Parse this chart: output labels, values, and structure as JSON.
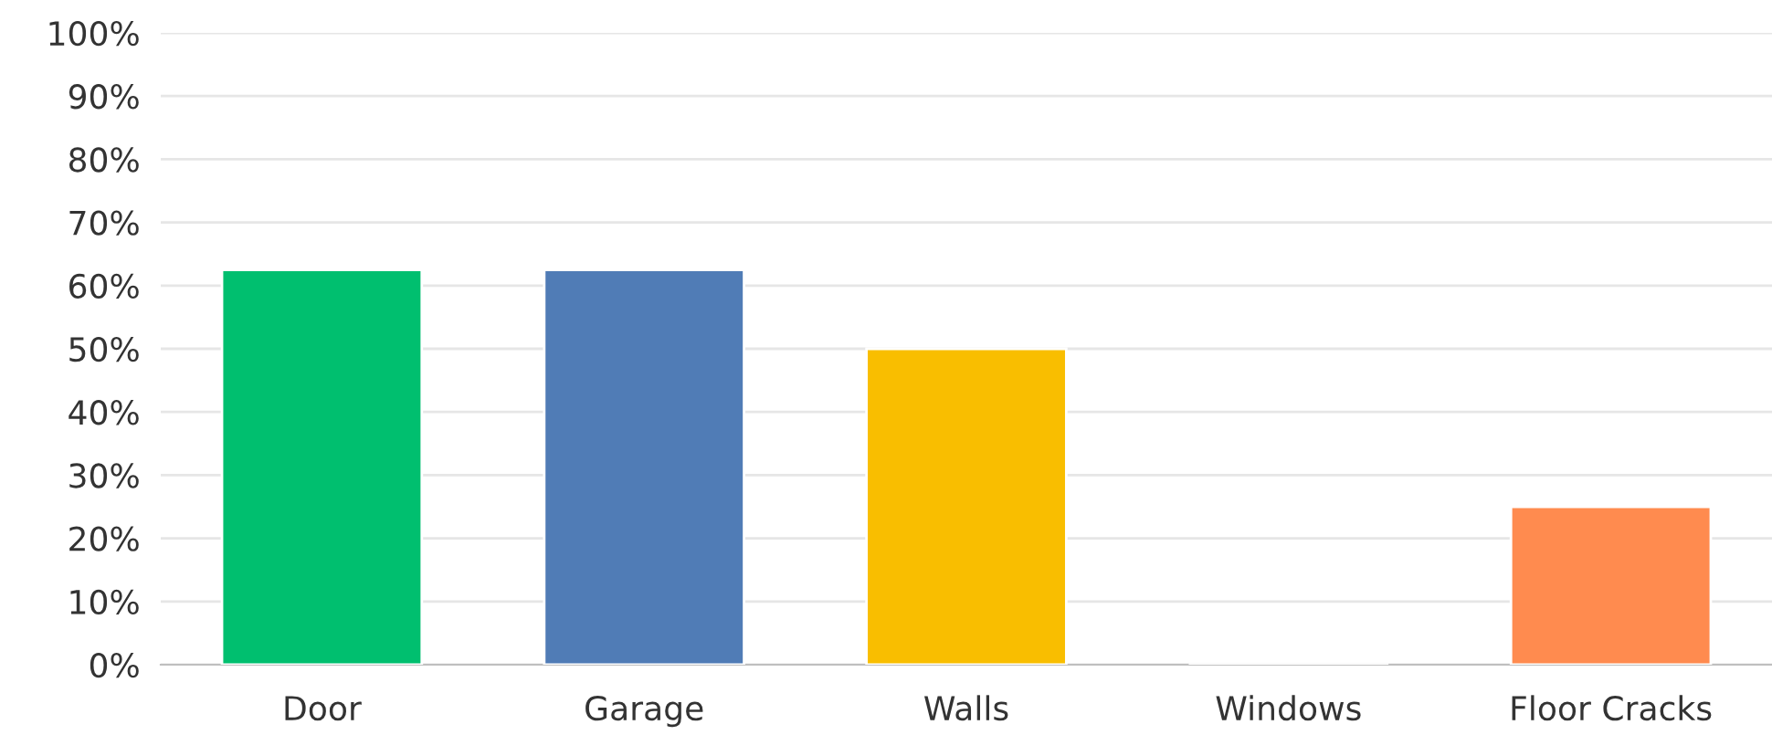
{
  "chart_data": {
    "type": "bar",
    "categories": [
      "Door",
      "Garage",
      "Walls",
      "Windows",
      "Floor Cracks"
    ],
    "values": [
      62.5,
      62.5,
      50,
      0,
      25
    ],
    "colors": [
      "#00bf6f",
      "#507cb6",
      "#f9be00",
      null,
      "#ff8b4f"
    ],
    "ylim": [
      0,
      100
    ],
    "yticks": [
      {
        "value": 0,
        "label": "0%"
      },
      {
        "value": 10,
        "label": "10%"
      },
      {
        "value": 20,
        "label": "20%"
      },
      {
        "value": 30,
        "label": "30%"
      },
      {
        "value": 40,
        "label": "40%"
      },
      {
        "value": 50,
        "label": "50%"
      },
      {
        "value": 60,
        "label": "60%"
      },
      {
        "value": 70,
        "label": "70%"
      },
      {
        "value": 80,
        "label": "80%"
      },
      {
        "value": 90,
        "label": "90%"
      },
      {
        "value": 100,
        "label": "100%"
      }
    ],
    "grid": "y",
    "legend": false
  }
}
